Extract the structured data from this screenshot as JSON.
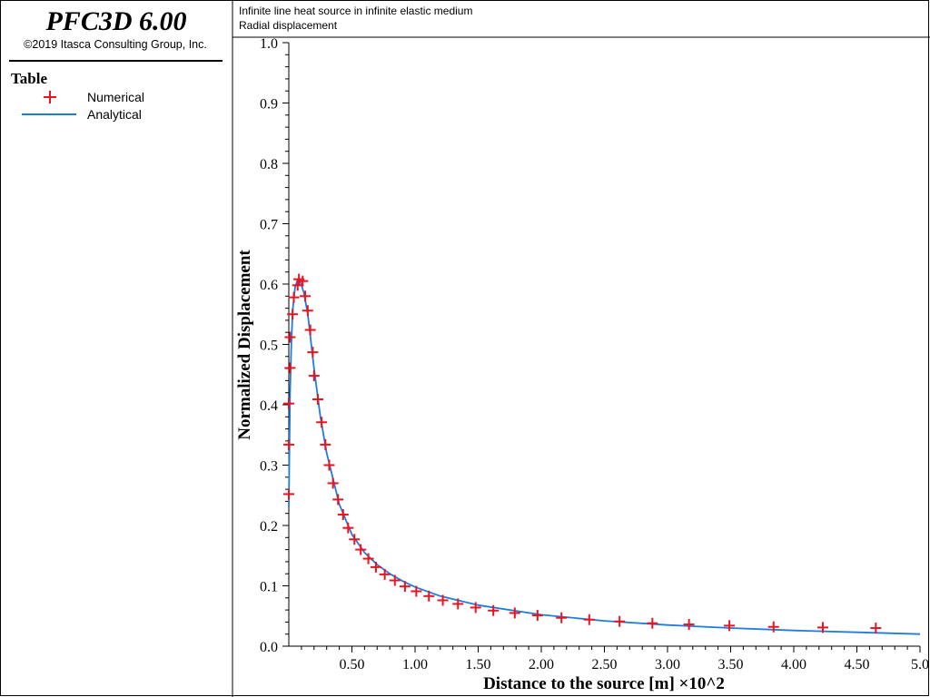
{
  "app": {
    "title": "PFC3D 6.00",
    "copyright": "©2019 Itasca Consulting Group, Inc."
  },
  "legend": {
    "title": "Table",
    "items": [
      {
        "label": "Numerical",
        "marker": "plus",
        "color": "#e8141f"
      },
      {
        "label": "Analytical",
        "marker": "line",
        "color": "#1e7be0"
      }
    ]
  },
  "plot_header": {
    "line1": "Infinite line heat source in infinite elastic medium",
    "line2": "Radial displacement"
  },
  "chart_data": {
    "type": "line",
    "title": "Infinite line heat source in infinite elastic medium",
    "subtitle": "Radial displacement",
    "xlabel": "Distance to the source [m] ×10^2",
    "ylabel": "Normalized Displacement",
    "xlim": [
      0,
      5.0
    ],
    "ylim": [
      0,
      1.0
    ],
    "x_ticks": [
      0.5,
      1.0,
      1.5,
      2.0,
      2.5,
      3.0,
      3.5,
      4.0,
      4.5,
      5.0
    ],
    "x_tick_labels": [
      "0.50",
      "1.00",
      "1.50",
      "2.00",
      "2.50",
      "3.00",
      "3.50",
      "4.00",
      "4.50",
      "5.0"
    ],
    "y_ticks": [
      0.0,
      0.1,
      0.2,
      0.3,
      0.4,
      0.5,
      0.6,
      0.7,
      0.8,
      0.9,
      1.0
    ],
    "y_tick_labels": [
      "0.0",
      "0.1",
      "0.2",
      "0.3",
      "0.4",
      "0.5",
      "0.6",
      "0.7",
      "0.8",
      "0.9",
      "1.0"
    ],
    "grid": false,
    "legend_position": "left-panel",
    "series": [
      {
        "name": "Numerical",
        "style": "markers",
        "color": "#e8141f",
        "points": [
          [
            0.0,
            0.252
          ],
          [
            0.0,
            0.334
          ],
          [
            0.0,
            0.402
          ],
          [
            0.01,
            0.461
          ],
          [
            0.01,
            0.512
          ],
          [
            0.03,
            0.55
          ],
          [
            0.04,
            0.578
          ],
          [
            0.07,
            0.598
          ],
          [
            0.08,
            0.608
          ],
          [
            0.11,
            0.605
          ],
          [
            0.13,
            0.58
          ],
          [
            0.15,
            0.556
          ],
          [
            0.17,
            0.524
          ],
          [
            0.19,
            0.487
          ],
          [
            0.2,
            0.448
          ],
          [
            0.23,
            0.409
          ],
          [
            0.26,
            0.371
          ],
          [
            0.29,
            0.334
          ],
          [
            0.32,
            0.3
          ],
          [
            0.35,
            0.27
          ],
          [
            0.39,
            0.243
          ],
          [
            0.43,
            0.218
          ],
          [
            0.47,
            0.196
          ],
          [
            0.52,
            0.177
          ],
          [
            0.57,
            0.16
          ],
          [
            0.63,
            0.145
          ],
          [
            0.69,
            0.131
          ],
          [
            0.76,
            0.119
          ],
          [
            0.84,
            0.109
          ],
          [
            0.92,
            0.099
          ],
          [
            1.01,
            0.091
          ],
          [
            1.11,
            0.083
          ],
          [
            1.22,
            0.076
          ],
          [
            1.34,
            0.07
          ],
          [
            1.48,
            0.064
          ],
          [
            1.62,
            0.059
          ],
          [
            1.79,
            0.055
          ],
          [
            1.97,
            0.051
          ],
          [
            2.16,
            0.047
          ],
          [
            2.38,
            0.044
          ],
          [
            2.62,
            0.041
          ],
          [
            2.88,
            0.038
          ],
          [
            3.17,
            0.036
          ],
          [
            3.49,
            0.034
          ],
          [
            3.84,
            0.032
          ],
          [
            4.23,
            0.031
          ],
          [
            4.65,
            0.03
          ]
        ]
      },
      {
        "name": "Analytical",
        "style": "line",
        "color": "#1e7be0",
        "points": [
          [
            0.0,
            0.23
          ],
          [
            0.01,
            0.42
          ],
          [
            0.02,
            0.5
          ],
          [
            0.03,
            0.555
          ],
          [
            0.05,
            0.595
          ],
          [
            0.07,
            0.607
          ],
          [
            0.09,
            0.605
          ],
          [
            0.12,
            0.585
          ],
          [
            0.15,
            0.55
          ],
          [
            0.2,
            0.46
          ],
          [
            0.25,
            0.38
          ],
          [
            0.3,
            0.32
          ],
          [
            0.4,
            0.235
          ],
          [
            0.5,
            0.185
          ],
          [
            0.6,
            0.155
          ],
          [
            0.7,
            0.135
          ],
          [
            0.8,
            0.12
          ],
          [
            0.9,
            0.108
          ],
          [
            1.0,
            0.098
          ],
          [
            1.2,
            0.083
          ],
          [
            1.5,
            0.068
          ],
          [
            2.0,
            0.052
          ],
          [
            2.5,
            0.042
          ],
          [
            3.0,
            0.035
          ],
          [
            3.5,
            0.03
          ],
          [
            4.0,
            0.026
          ],
          [
            4.5,
            0.023
          ],
          [
            5.0,
            0.02
          ]
        ]
      }
    ]
  }
}
